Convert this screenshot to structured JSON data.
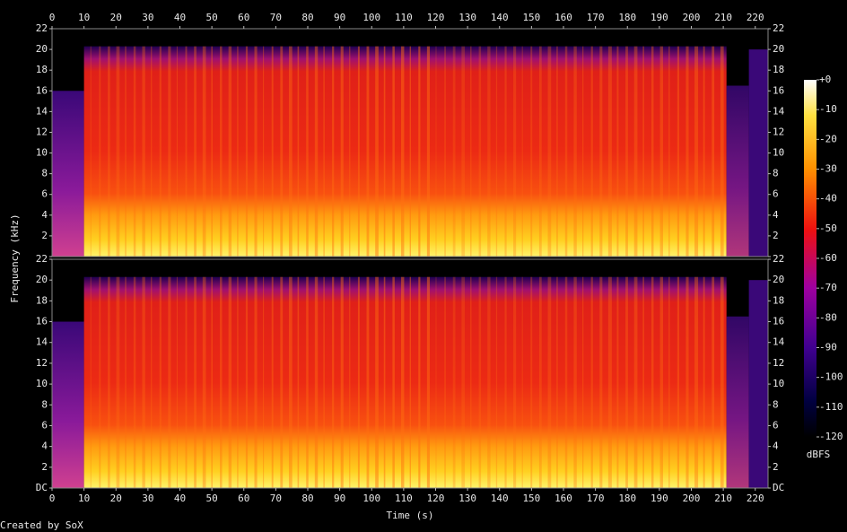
{
  "chart_data": {
    "type": "spectrogram",
    "x_label": "Time (s)",
    "y_label": "Frequency (kHz)",
    "panels": 2,
    "xlim": [
      0,
      224
    ],
    "xticks": [
      0,
      10,
      20,
      30,
      40,
      50,
      60,
      70,
      80,
      90,
      100,
      110,
      120,
      130,
      140,
      150,
      160,
      170,
      180,
      190,
      200,
      210,
      220
    ],
    "ylim": [
      0,
      22
    ],
    "yticks": [
      {
        "value": 0,
        "label": "DC"
      },
      2,
      4,
      6,
      8,
      10,
      12,
      14,
      16,
      18,
      20,
      22
    ],
    "colorbar": {
      "label": "dBFS",
      "clim": [
        -120,
        0
      ],
      "ticks": [
        {
          "value": 0,
          "label": "+0"
        },
        -10,
        -20,
        -30,
        -40,
        -50,
        -60,
        -70,
        -80,
        -90,
        -100,
        -110,
        -120
      ]
    },
    "footer": "Created by SoX"
  }
}
